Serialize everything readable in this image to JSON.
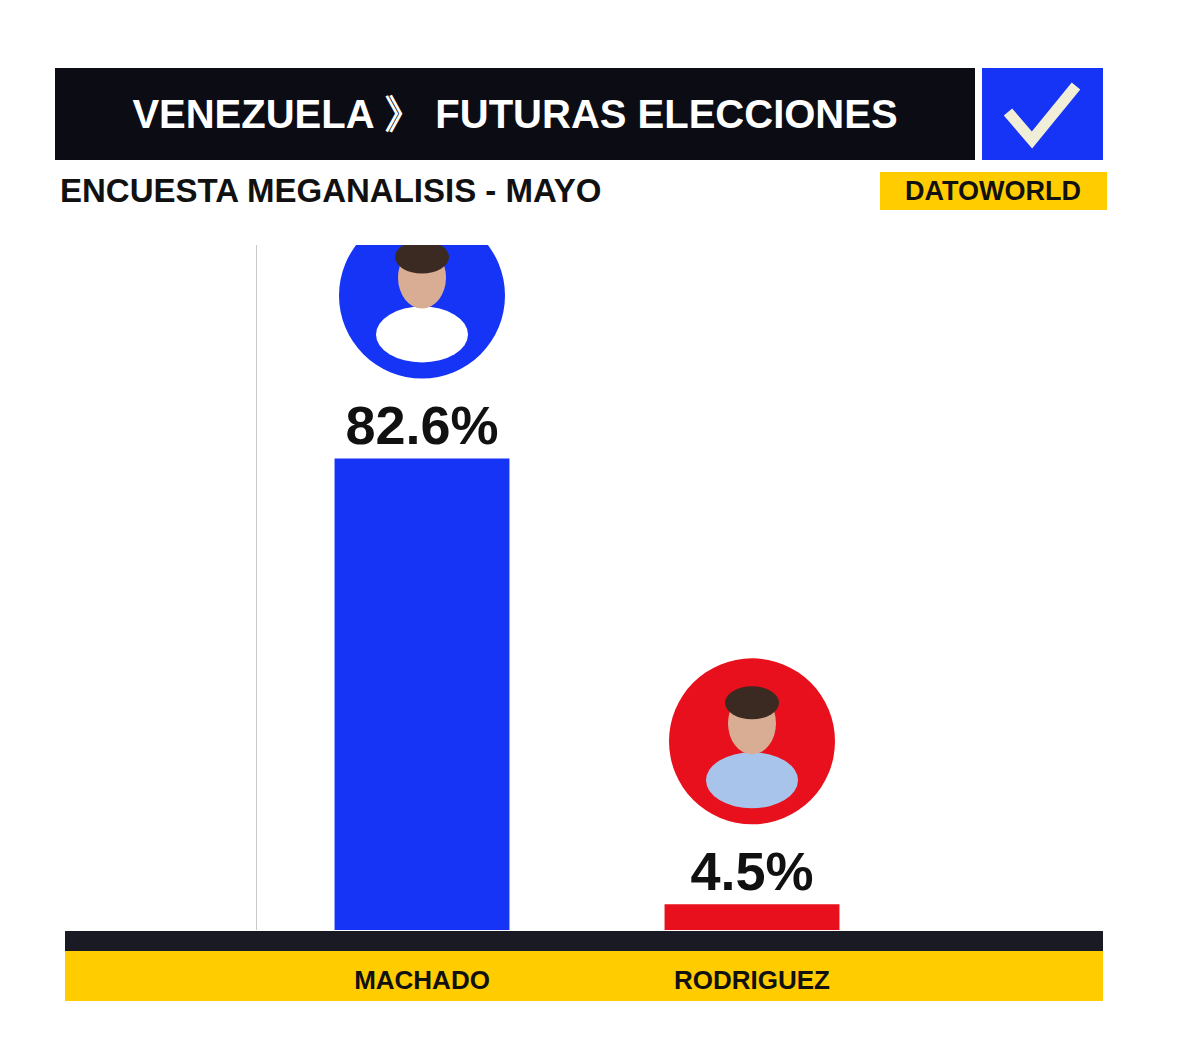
{
  "chart_data": {
    "type": "bar",
    "title": "VENEZUELA 》 FUTURAS ELECCIONES",
    "subtitle": "ENCUESTA MEGANALISIS - MAYO",
    "annotations": [
      "DATOWORLD"
    ],
    "categories": [
      "MACHADO",
      "RODRIGUEZ"
    ],
    "values": [
      82.6,
      4.5
    ],
    "value_labels": [
      "82.6%",
      "4.5%"
    ],
    "colors": [
      "#1634f6",
      "#e8101c"
    ],
    "ylim": [
      0,
      120
    ],
    "yticks": [],
    "grid": false,
    "data_labels": true,
    "tick_labels": "x"
  }
}
